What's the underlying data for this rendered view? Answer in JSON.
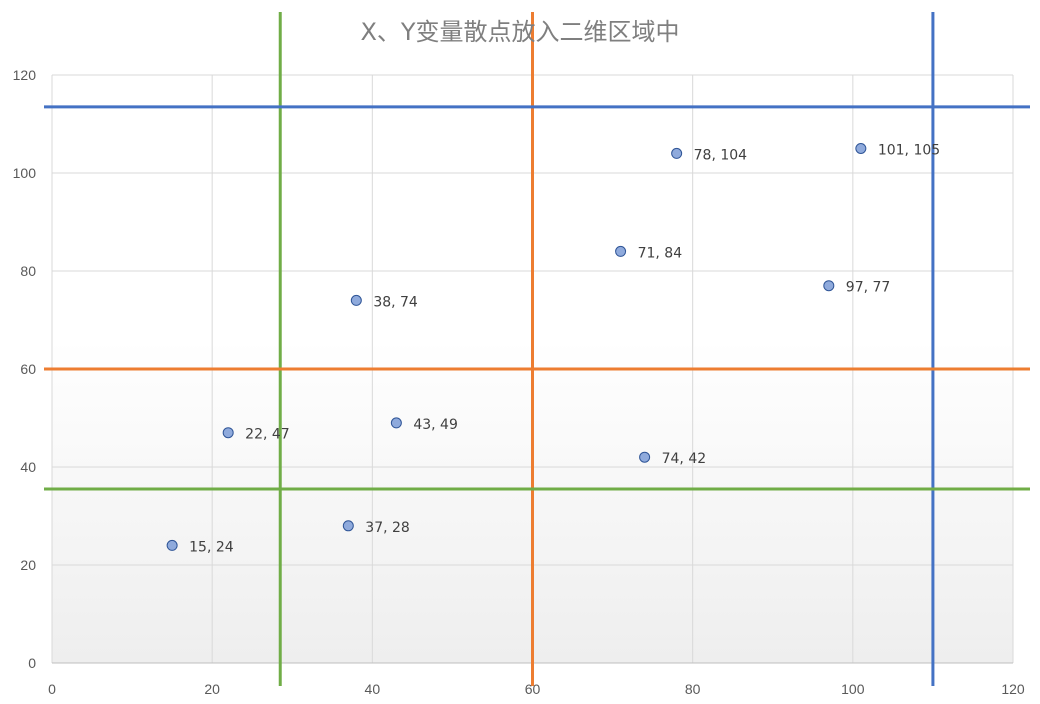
{
  "chart_data": {
    "type": "scatter",
    "title": "X、Y变量散点放入二维区域中",
    "xlabel": "",
    "ylabel": "",
    "xlim": [
      0,
      120
    ],
    "ylim": [
      0,
      120
    ],
    "xticks": [
      0,
      20,
      40,
      60,
      80,
      100,
      120
    ],
    "yticks": [
      0,
      20,
      40,
      60,
      80,
      100,
      120
    ],
    "grid": true,
    "plot_background": "gradient-white-to-light-gray",
    "marker_color": "#8faadc",
    "marker_edge_color": "#2f5597",
    "points": [
      {
        "x": 15,
        "y": 24,
        "label": "15, 24"
      },
      {
        "x": 22,
        "y": 47,
        "label": "22, 47"
      },
      {
        "x": 37,
        "y": 28,
        "label": "37, 28"
      },
      {
        "x": 38,
        "y": 74,
        "label": "38, 74"
      },
      {
        "x": 43,
        "y": 49,
        "label": "43, 49"
      },
      {
        "x": 71,
        "y": 84,
        "label": "71, 84"
      },
      {
        "x": 74,
        "y": 42,
        "label": "74, 42"
      },
      {
        "x": 78,
        "y": 104,
        "label": "78, 104"
      },
      {
        "x": 97,
        "y": 77,
        "label": "97, 77"
      },
      {
        "x": 101,
        "y": 105,
        "label": "101, 105"
      }
    ],
    "reference_lines": [
      {
        "orientation": "vertical",
        "value": 28.5,
        "color": "#70ad47"
      },
      {
        "orientation": "vertical",
        "value": 60,
        "color": "#ed7d31"
      },
      {
        "orientation": "vertical",
        "value": 110,
        "color": "#4472c4"
      },
      {
        "orientation": "horizontal",
        "value": 113.5,
        "color": "#4472c4"
      },
      {
        "orientation": "horizontal",
        "value": 60,
        "color": "#ed7d31"
      },
      {
        "orientation": "horizontal",
        "value": 35.5,
        "color": "#70ad47"
      }
    ]
  }
}
